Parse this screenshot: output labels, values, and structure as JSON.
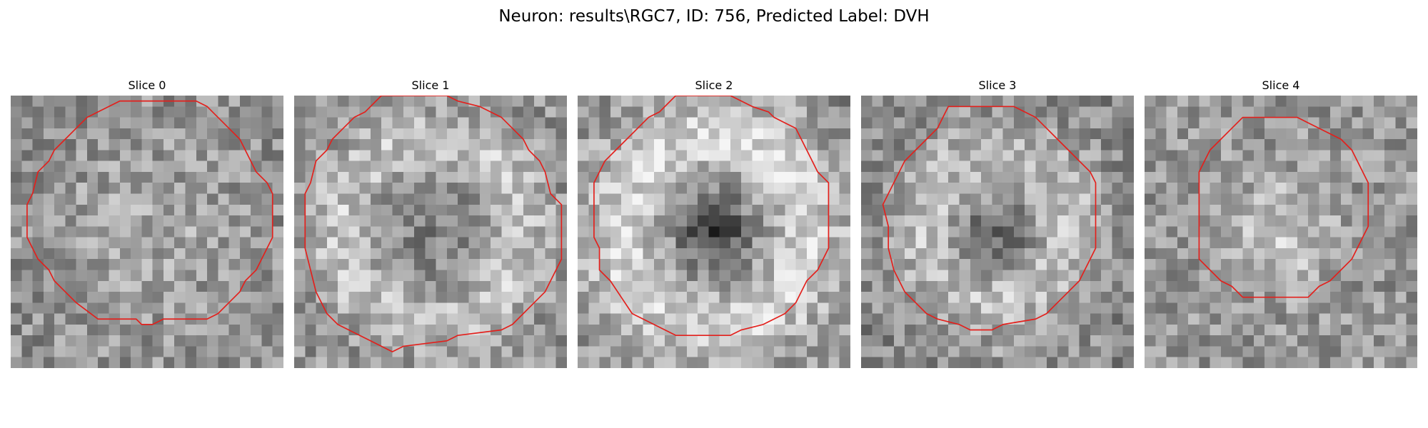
{
  "figure": {
    "title": "Neuron: results\\RGC7, ID: 756, Predicted Label: DVH"
  },
  "colors": {
    "outline": "#e3201c",
    "background": "#ffffff"
  },
  "panels": [
    {
      "label": "Slice 0",
      "pattern": "uniform",
      "contour": [
        [
          11,
          0.5
        ],
        [
          17,
          0.5
        ],
        [
          18,
          1
        ],
        [
          18.5,
          1.5
        ],
        [
          19,
          2
        ],
        [
          20,
          3
        ],
        [
          21,
          4
        ],
        [
          21.5,
          5
        ],
        [
          22,
          6
        ],
        [
          22.5,
          7
        ],
        [
          23.5,
          8
        ],
        [
          24,
          9
        ],
        [
          24,
          13
        ],
        [
          23.5,
          14
        ],
        [
          22.5,
          16
        ],
        [
          21.5,
          17
        ],
        [
          21,
          18
        ],
        [
          20,
          19
        ],
        [
          19,
          20
        ],
        [
          18,
          20.5
        ],
        [
          14,
          20.5
        ],
        [
          13,
          21
        ],
        [
          12,
          21
        ],
        [
          11.5,
          20.5
        ],
        [
          8,
          20.5
        ],
        [
          6,
          19
        ],
        [
          5,
          18
        ],
        [
          4,
          17
        ],
        [
          3.5,
          16
        ],
        [
          2.5,
          15
        ],
        [
          1.5,
          13
        ],
        [
          1.5,
          10
        ],
        [
          2,
          9
        ],
        [
          2.5,
          7
        ],
        [
          3.5,
          6
        ],
        [
          4,
          5
        ],
        [
          5,
          4
        ],
        [
          6,
          3
        ],
        [
          7,
          2
        ],
        [
          8,
          1.5
        ],
        [
          9,
          1
        ],
        [
          10,
          0.5
        ]
      ]
    },
    {
      "label": "Slice 1",
      "pattern": "ring",
      "contour": [
        [
          8,
          0
        ],
        [
          14,
          0
        ],
        [
          15,
          0.5
        ],
        [
          17,
          1
        ],
        [
          18,
          1.5
        ],
        [
          19,
          2
        ],
        [
          20,
          3
        ],
        [
          21,
          4
        ],
        [
          21.5,
          5
        ],
        [
          22.5,
          6
        ],
        [
          23,
          7
        ],
        [
          23.5,
          9
        ],
        [
          24.5,
          10
        ],
        [
          24.5,
          15
        ],
        [
          24,
          16
        ],
        [
          23.5,
          17
        ],
        [
          23,
          18
        ],
        [
          22,
          19
        ],
        [
          21,
          20
        ],
        [
          20,
          21
        ],
        [
          19,
          21.5
        ],
        [
          15,
          22
        ],
        [
          14,
          22.5
        ],
        [
          10,
          23
        ],
        [
          9,
          23.5
        ],
        [
          7,
          22.5
        ],
        [
          6,
          22
        ],
        [
          4,
          21
        ],
        [
          3,
          20
        ],
        [
          2.5,
          19
        ],
        [
          2,
          18
        ],
        [
          1.5,
          16
        ],
        [
          1,
          14
        ],
        [
          1,
          9
        ],
        [
          1.5,
          8
        ],
        [
          2,
          6
        ],
        [
          3,
          5
        ],
        [
          3.5,
          4
        ],
        [
          4.5,
          3
        ],
        [
          5.5,
          2
        ],
        [
          6.5,
          1.5
        ],
        [
          7.5,
          0.5
        ]
      ]
    },
    {
      "label": "Slice 2",
      "pattern": "darkcenter",
      "contour": [
        [
          9,
          0
        ],
        [
          14,
          0
        ],
        [
          15,
          0.5
        ],
        [
          16,
          1
        ],
        [
          17.5,
          1.5
        ],
        [
          18,
          2
        ],
        [
          19,
          2.5
        ],
        [
          20,
          3
        ],
        [
          20.5,
          4
        ],
        [
          21,
          5
        ],
        [
          21.5,
          6
        ],
        [
          22,
          7
        ],
        [
          23,
          8
        ],
        [
          23,
          14
        ],
        [
          22.5,
          15
        ],
        [
          22,
          16
        ],
        [
          21,
          17
        ],
        [
          20,
          19
        ],
        [
          19,
          20
        ],
        [
          18,
          20.5
        ],
        [
          17,
          21
        ],
        [
          15,
          21.5
        ],
        [
          14,
          22
        ],
        [
          9,
          22
        ],
        [
          8,
          21.5
        ],
        [
          7,
          21
        ],
        [
          6,
          20.5
        ],
        [
          5,
          20
        ],
        [
          4,
          18.5
        ],
        [
          3,
          17
        ],
        [
          2,
          16
        ],
        [
          2,
          14
        ],
        [
          1.5,
          13
        ],
        [
          1.5,
          8
        ],
        [
          2,
          7
        ],
        [
          2.5,
          6
        ],
        [
          3.5,
          5
        ],
        [
          4.5,
          4
        ],
        [
          5.5,
          3
        ],
        [
          6.5,
          2
        ],
        [
          7.5,
          1.5
        ],
        [
          8.5,
          0.5
        ]
      ]
    },
    {
      "label": "Slice 3",
      "pattern": "center",
      "contour": [
        [
          8,
          1
        ],
        [
          14,
          1
        ],
        [
          15,
          1.5
        ],
        [
          16,
          2
        ],
        [
          17,
          3
        ],
        [
          18,
          4
        ],
        [
          19,
          5
        ],
        [
          20,
          6
        ],
        [
          21,
          7
        ],
        [
          21.5,
          8
        ],
        [
          21.5,
          14
        ],
        [
          21,
          15
        ],
        [
          20.5,
          16
        ],
        [
          20,
          17
        ],
        [
          19,
          18
        ],
        [
          18,
          19
        ],
        [
          17,
          20
        ],
        [
          16,
          20.5
        ],
        [
          13,
          21
        ],
        [
          12,
          21.5
        ],
        [
          10,
          21.5
        ],
        [
          9,
          21
        ],
        [
          7,
          20.5
        ],
        [
          6,
          20
        ],
        [
          5,
          19
        ],
        [
          4,
          18
        ],
        [
          3.5,
          17
        ],
        [
          3,
          16
        ],
        [
          2.5,
          14
        ],
        [
          2.5,
          12
        ],
        [
          2,
          10
        ],
        [
          2.5,
          9
        ],
        [
          3,
          8
        ],
        [
          3.5,
          7
        ],
        [
          4,
          6
        ],
        [
          5,
          5
        ],
        [
          6,
          4
        ],
        [
          7,
          3
        ],
        [
          7.5,
          2
        ]
      ]
    },
    {
      "label": "Slice 4",
      "pattern": "bright",
      "contour": [
        [
          9,
          2
        ],
        [
          14,
          2
        ],
        [
          15,
          2.5
        ],
        [
          16,
          3
        ],
        [
          17,
          3.5
        ],
        [
          18,
          4
        ],
        [
          19,
          5
        ],
        [
          19.5,
          6
        ],
        [
          20,
          7
        ],
        [
          20.5,
          8
        ],
        [
          20.5,
          12
        ],
        [
          20,
          13
        ],
        [
          19.5,
          14
        ],
        [
          19,
          15
        ],
        [
          18,
          16
        ],
        [
          17,
          17
        ],
        [
          16,
          17.5
        ],
        [
          15,
          18.5
        ],
        [
          9,
          18.5
        ],
        [
          8,
          17.5
        ],
        [
          7,
          17
        ],
        [
          6,
          16
        ],
        [
          5,
          15
        ],
        [
          5,
          7
        ],
        [
          5.5,
          6
        ],
        [
          6,
          5
        ],
        [
          7,
          4
        ],
        [
          8,
          3
        ]
      ]
    }
  ]
}
